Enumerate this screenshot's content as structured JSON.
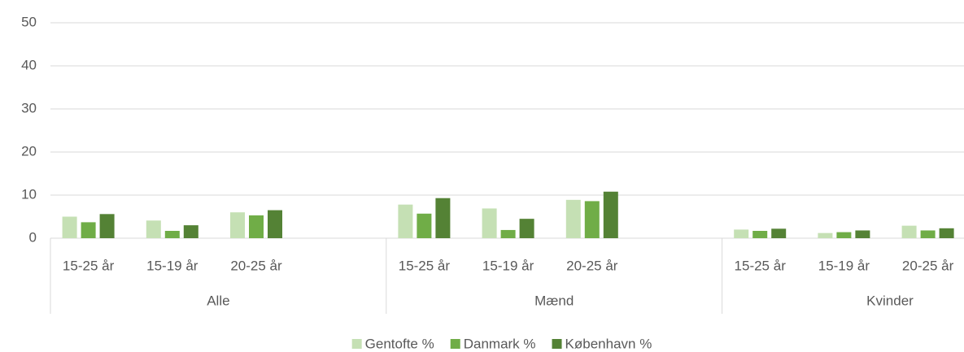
{
  "chart_data": {
    "type": "bar",
    "categories": [
      "15-25 år",
      "15-19 år",
      "20-25 år",
      null,
      "15-25 år",
      "15-19 år",
      "20-25 år",
      null,
      "15-25 år",
      "15-19 år",
      "20-25 år",
      null
    ],
    "groups": [
      "Alle",
      "Mænd",
      "Kvinder"
    ],
    "series": [
      {
        "name": "Gentofte %",
        "color": "#c5e0b4",
        "values": [
          5.0,
          4.1,
          6.0,
          null,
          7.8,
          6.9,
          8.9,
          null,
          2.0,
          1.2,
          2.9,
          null
        ]
      },
      {
        "name": "Danmark %",
        "color": "#70ad47",
        "values": [
          3.7,
          1.7,
          5.3,
          null,
          5.7,
          1.9,
          8.6,
          null,
          1.7,
          1.4,
          1.8,
          null
        ]
      },
      {
        "name": "København %",
        "color": "#548235",
        "values": [
          5.6,
          3.0,
          6.5,
          null,
          9.3,
          4.5,
          10.8,
          null,
          2.2,
          1.8,
          2.3,
          null
        ]
      }
    ],
    "ylim": [
      0,
      50
    ],
    "yticks": [
      0,
      10,
      20,
      30,
      40,
      50
    ],
    "grid": true,
    "legend": "bottom"
  }
}
